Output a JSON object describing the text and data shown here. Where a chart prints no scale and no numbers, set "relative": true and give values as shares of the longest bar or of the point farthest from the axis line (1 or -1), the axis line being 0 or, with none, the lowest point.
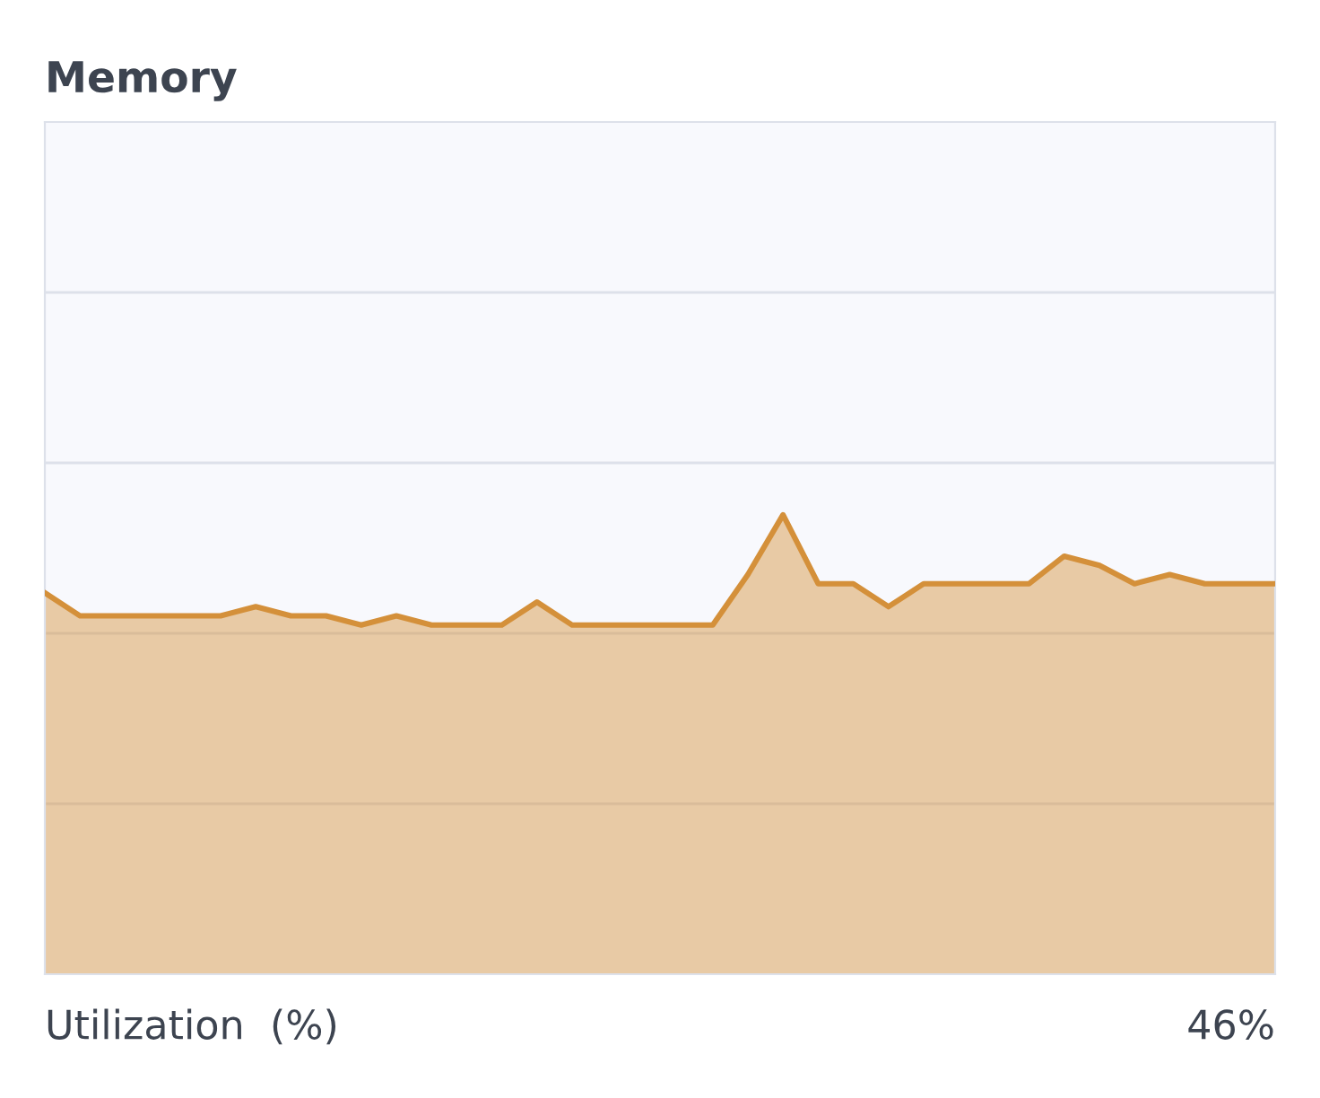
{
  "chart_data": {
    "type": "area",
    "title": "Memory",
    "xlabel": "Utilization  (%)",
    "annotations": [
      "46%"
    ],
    "relative": true,
    "ref_lines": [
      {
        "axis": "y",
        "value": 0.371,
        "color": "#dde1ea"
      },
      {
        "axis": "y",
        "value": 0.742,
        "color": "#dde1ea"
      },
      {
        "axis": "y",
        "value": 1.113,
        "color": "#dde1ea"
      },
      {
        "axis": "y",
        "value": 1.484,
        "color": "#dde1ea"
      }
    ],
    "categories": [
      null,
      null,
      null,
      null,
      null,
      null,
      null,
      null,
      null,
      null,
      null,
      null,
      null,
      null,
      null,
      null,
      null,
      null,
      null,
      null,
      null,
      null,
      null,
      null,
      null,
      null,
      null,
      null,
      null,
      null,
      null,
      null,
      null,
      null,
      null,
      null
    ],
    "series": [
      {
        "color": "#d4903a",
        "values": [
          0.83,
          0.78,
          0.78,
          0.78,
          0.78,
          0.78,
          0.8,
          0.78,
          0.78,
          0.76,
          0.78,
          0.76,
          0.76,
          0.76,
          0.81,
          0.76,
          0.76,
          0.76,
          0.76,
          0.76,
          0.87,
          1,
          0.85,
          0.85,
          0.8,
          0.85,
          0.85,
          0.85,
          0.85,
          0.91,
          0.89,
          0.85,
          0.87,
          0.85,
          0.85,
          0.85
        ]
      }
    ]
  }
}
